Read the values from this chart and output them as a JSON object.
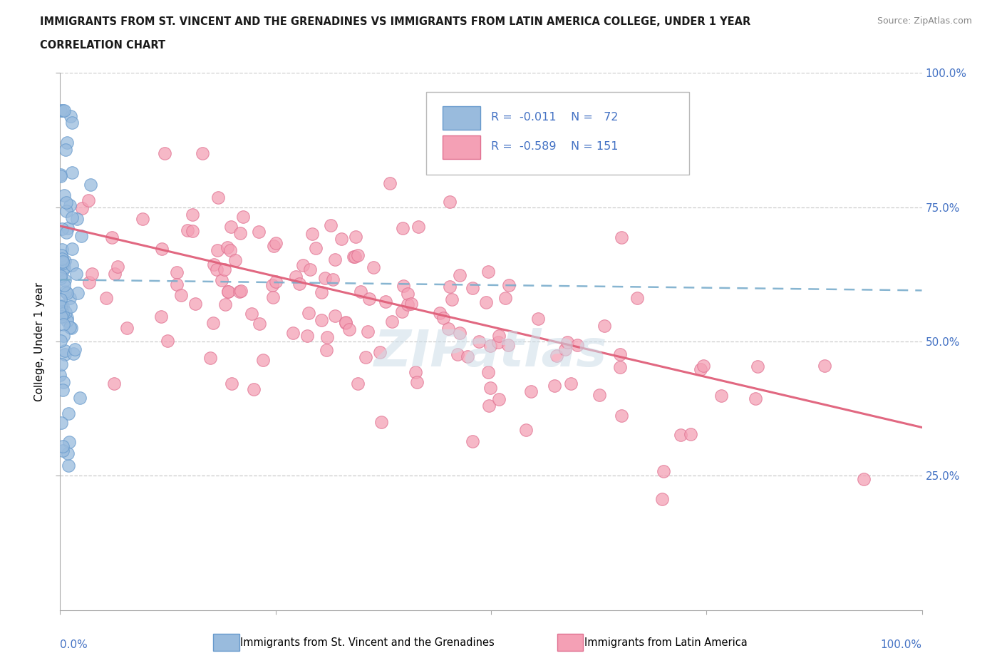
{
  "title_line1": "IMMIGRANTS FROM ST. VINCENT AND THE GRENADINES VS IMMIGRANTS FROM LATIN AMERICA COLLEGE, UNDER 1 YEAR",
  "title_line2": "CORRELATION CHART",
  "source_text": "Source: ZipAtlas.com",
  "ylabel": "College, Under 1 year",
  "xlim": [
    0,
    1
  ],
  "ylim": [
    0,
    1
  ],
  "grid_color": "#cccccc",
  "background_color": "#ffffff",
  "series1_color": "#99bbdd",
  "series1_edge": "#6699cc",
  "series1_line_color": "#7aadcc",
  "series2_color": "#f4a0b5",
  "series2_edge": "#e07090",
  "series2_line_color": "#e0607a",
  "watermark": "ZIPatlas",
  "watermark_color": "#ccdde8",
  "blue_line_y_start": 0.615,
  "blue_line_y_end": 0.595,
  "pink_line_y_start": 0.715,
  "pink_line_y_end": 0.34,
  "legend_text_color": "#4472c4",
  "axis_label_color": "#4472c4",
  "title_color": "#1a1a1a",
  "source_color": "#888888"
}
